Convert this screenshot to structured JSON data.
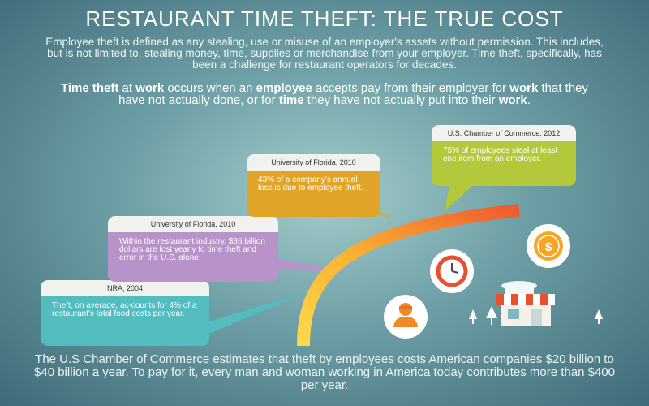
{
  "header": {
    "title": "RESTAURANT TIME THEFT: THE TRUE COST",
    "intro": "Employee theft is defined as any stealing, use or misuse of an employer's assets without permission. This includes, but is not limited to, stealing money, time, supplies or merchandise from your employer. Time theft, specifically, has been a challenge for restaurant operators for decades."
  },
  "definition": {
    "parts": [
      "Time theft",
      " at ",
      "work",
      " occurs when an ",
      "employee",
      " accepts pay from their employer for ",
      "work",
      " that they have not actually done, or for ",
      "time",
      " they have not actually put into their ",
      "work",
      "."
    ]
  },
  "callouts": [
    {
      "source": "NRA, 2004",
      "text": "Theft, on average, ac-counts for 4% of a restaurant's total food costs per year.",
      "color": "#52bcbe"
    },
    {
      "source": "University of Florida, 2010",
      "text": "Within the restaurant industry, $36 billion dollars are lost yearly to time theft and error in the U.S. alone.",
      "color": "#b893c9"
    },
    {
      "source": "University of Florida, 2010",
      "text": "43% of a company's annual loss is due to employee theft.",
      "color": "#e1a428"
    },
    {
      "source": "U.S. Chamber of Commerce, 2012",
      "text": "75% of employees steal at least one item from an employer.",
      "color": "#b4c83c"
    }
  ],
  "icons": [
    "clock-icon",
    "dollar-coin-icon",
    "employee-icon",
    "store-icon",
    "tree-icon"
  ],
  "dollar_symbol": "$",
  "footer": {
    "text": "The U.S Chamber of Commerce estimates that theft by employees costs American companies $20 billion to $40 billion a year. To pay for it, every man and woman working in America today contributes more than $400 per year."
  }
}
